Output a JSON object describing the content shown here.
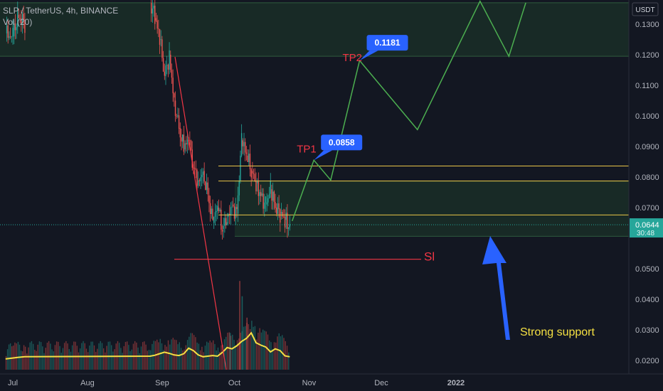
{
  "header": {
    "symbol": "SLP / TetherUS, 4h, BINANCE",
    "indicator": "Vol (20)"
  },
  "chart_data": {
    "type": "line",
    "price_axis": {
      "currency": "USDT",
      "ticks": [
        "0.1300",
        "0.1200",
        "0.1100",
        "0.1000",
        "0.0900",
        "0.0800",
        "0.0700",
        "0.0500",
        "0.0400",
        "0.0300",
        "0.0200"
      ],
      "range": [
        0.017,
        0.1375
      ]
    },
    "time_axis": {
      "labels": [
        "Jul",
        "Aug",
        "Sep",
        "Oct",
        "Nov",
        "Dec",
        "2022"
      ]
    },
    "current_price": {
      "value": "0.0644",
      "countdown": "30:48",
      "color": "#26a69a"
    },
    "zones": [
      {
        "from": 0.1195,
        "to": 0.137,
        "color": "#1e3a2a"
      },
      {
        "from": 0.0606,
        "to": 0.0787,
        "color": "#1e3a2a"
      }
    ],
    "levels": [
      {
        "price": 0.0836,
        "color": "#e8c547"
      },
      {
        "price": 0.0787,
        "color": "#e8c547"
      },
      {
        "price": 0.0676,
        "color": "#e8c547"
      }
    ],
    "stop_loss": {
      "label": "Sl",
      "price": 0.0531,
      "color": "#f23645"
    },
    "projection": {
      "color": "#4caf50",
      "points": [
        [
          "2021-10-25",
          0.0656
        ],
        [
          "2021-11-03",
          0.0855
        ],
        [
          "2021-11-10",
          0.079
        ],
        [
          "2021-11-22",
          0.1181
        ],
        [
          "2021-12-16",
          0.0955
        ],
        [
          "2022-01-11",
          0.1375
        ],
        [
          "2022-01-23",
          0.1195
        ],
        [
          "2022-01-30",
          0.137
        ]
      ]
    },
    "targets": [
      {
        "name": "TP1",
        "value": "0.0858",
        "label_color": "#f23645",
        "badge_color": "#2962ff"
      },
      {
        "name": "TP2",
        "value": "0.1181",
        "label_color": "#f23645",
        "badge_color": "#2962ff"
      }
    ],
    "annotation": {
      "text": "Strong support",
      "color": "#f5e042",
      "arrow_color": "#2962ff"
    },
    "price_series": [
      [
        "2021-06-28",
        0.127
      ],
      [
        "2021-07-01",
        0.126
      ],
      [
        "2021-07-03",
        0.133
      ],
      [
        "2021-07-06",
        0.13
      ],
      [
        "2021-08-27",
        0.137
      ],
      [
        "2021-08-29",
        0.132
      ],
      [
        "2021-08-31",
        0.125
      ],
      [
        "2021-09-02",
        0.113
      ],
      [
        "2021-09-04",
        0.12
      ],
      [
        "2021-09-06",
        0.105
      ],
      [
        "2021-09-08",
        0.096
      ],
      [
        "2021-09-10",
        0.089
      ],
      [
        "2021-09-12",
        0.092
      ],
      [
        "2021-09-14",
        0.083
      ],
      [
        "2021-09-16",
        0.079
      ],
      [
        "2021-09-18",
        0.082
      ],
      [
        "2021-09-20",
        0.074
      ],
      [
        "2021-09-22",
        0.065
      ],
      [
        "2021-09-24",
        0.07
      ],
      [
        "2021-09-26",
        0.063
      ],
      [
        "2021-09-28",
        0.067
      ],
      [
        "2021-09-30",
        0.071
      ],
      [
        "2021-10-02",
        0.068
      ],
      [
        "2021-10-04",
        0.092
      ],
      [
        "2021-10-06",
        0.087
      ],
      [
        "2021-10-08",
        0.082
      ],
      [
        "2021-10-10",
        0.078
      ],
      [
        "2021-10-12",
        0.074
      ],
      [
        "2021-10-14",
        0.071
      ],
      [
        "2021-10-16",
        0.076
      ],
      [
        "2021-10-18",
        0.07
      ],
      [
        "2021-10-20",
        0.068
      ],
      [
        "2021-10-22",
        0.066
      ],
      [
        "2021-10-24",
        0.064
      ]
    ],
    "volume_line": {
      "color": "#f5e042",
      "values": [
        0.0205,
        0.0208,
        0.021,
        0.0212,
        0.0214,
        0.0217,
        0.0222,
        0.0227,
        0.0223,
        0.0218,
        0.0216,
        0.0222,
        0.024,
        0.0232,
        0.0218,
        0.0212,
        0.0214,
        0.0216,
        0.0214,
        0.0226,
        0.0242,
        0.0238,
        0.0248,
        0.0262,
        0.0272,
        0.029,
        0.0258,
        0.025,
        0.0244,
        0.0228,
        0.0238,
        0.0232,
        0.0215,
        0.0212
      ]
    }
  }
}
